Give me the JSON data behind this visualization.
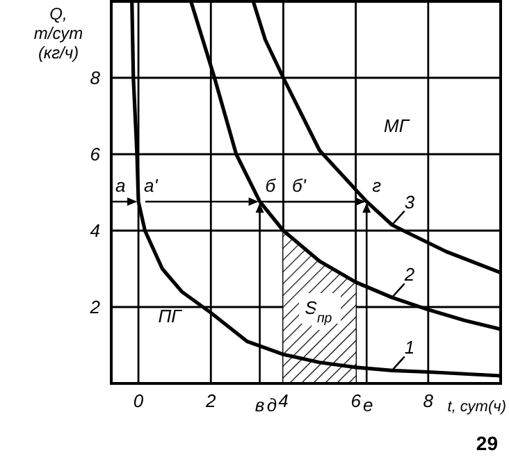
{
  "chart_data": {
    "type": "line",
    "xlabel": "t, сут(ч)",
    "ylabel": "Q,\nт/сут\n(кг/ч)",
    "xlim": [
      -0.75,
      10
    ],
    "ylim": [
      0,
      10
    ],
    "xticks": [
      0,
      2,
      4,
      6,
      8
    ],
    "yticks": [
      2,
      4,
      6,
      8
    ],
    "grid": true,
    "series": [
      {
        "name": "1",
        "color": "#000000",
        "x": [
          -0.18,
          -0.14,
          -0.04,
          0,
          0.18,
          0.66,
          1.2,
          2,
          3,
          4,
          5,
          6,
          7,
          8,
          10
        ],
        "values": [
          10,
          8,
          6,
          4.76,
          4,
          3,
          2.4,
          1.85,
          1.1,
          0.76,
          0.55,
          0.42,
          0.34,
          0.3,
          0.2
        ]
      },
      {
        "name": "2",
        "color": "#000000",
        "x": [
          1.45,
          2.1,
          2.7,
          3.35,
          4,
          5,
          6,
          7,
          8,
          9,
          10
        ],
        "values": [
          10,
          8,
          6,
          4.76,
          4,
          3.2,
          2.65,
          2.25,
          1.93,
          1.65,
          1.42
        ]
      },
      {
        "name": "3",
        "color": "#000000",
        "x": [
          3.17,
          3.5,
          4,
          5,
          6.3,
          7,
          7.4,
          8.5,
          10
        ],
        "values": [
          10,
          9,
          8,
          6.1,
          4.76,
          4.15,
          3.96,
          3.45,
          2.9
        ]
      },
      {
        "type": "area",
        "color": "#000000",
        "x": [
          4,
          5,
          6
        ],
        "values": [
          4,
          3.2,
          2.65
        ]
      }
    ],
    "annotations": [
      {
        "text": "а",
        "x": 0,
        "y": 4.76
      },
      {
        "text": "а'",
        "x": 0,
        "y": 4.76
      },
      {
        "text": "б",
        "x": 3.35,
        "y": 4.76
      },
      {
        "text": "г",
        "x": 6.3,
        "y": 4.76
      },
      "б'",
      "в",
      "д",
      "е",
      "МГ",
      "ПГ",
      "S$_{пр}$",
      "29"
    ]
  }
}
